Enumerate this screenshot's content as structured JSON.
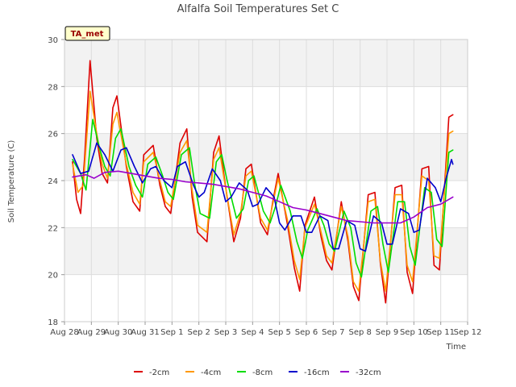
{
  "chart_data": {
    "type": "line",
    "title": "Alfalfa Soil Temperatures Set C",
    "xlabel": "Time",
    "ylabel": "Soil Temperature (C)",
    "ylim": [
      18,
      30
    ],
    "yticks": [
      18,
      20,
      22,
      24,
      26,
      28,
      30
    ],
    "xlim": [
      0,
      15
    ],
    "xticks": [
      {
        "value": 0,
        "label": "Aug 28"
      },
      {
        "value": 1,
        "label": "Aug 29"
      },
      {
        "value": 2,
        "label": "Aug 30"
      },
      {
        "value": 3,
        "label": "Aug 31"
      },
      {
        "value": 4,
        "label": "Sep 1"
      },
      {
        "value": 5,
        "label": "Sep 2"
      },
      {
        "value": 6,
        "label": "Sep 3"
      },
      {
        "value": 7,
        "label": "Sep 4"
      },
      {
        "value": 8,
        "label": "Sep 5"
      },
      {
        "value": 9,
        "label": "Sep 6"
      },
      {
        "value": 10,
        "label": "Sep 7"
      },
      {
        "value": 11,
        "label": "Sep 8"
      },
      {
        "value": 12,
        "label": "Sep 9"
      },
      {
        "value": 13,
        "label": "Sep 10"
      },
      {
        "value": 14,
        "label": "Sep 11"
      },
      {
        "value": 15,
        "label": "Sep 12"
      }
    ],
    "grid": true,
    "legend_position": "bottom",
    "annotation": "TA_met",
    "series": [
      {
        "name": "-2cm",
        "color": "#dd0000",
        "x": [
          0.3,
          0.45,
          0.6,
          0.75,
          0.95,
          1.2,
          1.4,
          1.6,
          1.8,
          1.95,
          2.3,
          2.55,
          2.8,
          2.95,
          3.3,
          3.55,
          3.75,
          3.95,
          4.3,
          4.55,
          4.75,
          4.95,
          5.3,
          5.55,
          5.75,
          5.95,
          6.3,
          6.55,
          6.75,
          6.95,
          7.3,
          7.55,
          7.75,
          7.95,
          8.3,
          8.55,
          8.75,
          8.95,
          9.3,
          9.55,
          9.75,
          9.95,
          10.3,
          10.55,
          10.75,
          10.95,
          11.3,
          11.55,
          11.75,
          11.95,
          12.3,
          12.55,
          12.75,
          12.95,
          13.3,
          13.55,
          13.75,
          13.95,
          14.3,
          14.45
        ],
        "y": [
          24.8,
          23.2,
          22.6,
          25.0,
          29.1,
          25.8,
          24.3,
          23.9,
          27.1,
          27.6,
          24.6,
          23.1,
          22.7,
          25.1,
          25.5,
          23.8,
          22.9,
          22.6,
          25.6,
          26.2,
          23.3,
          21.8,
          21.4,
          25.2,
          25.9,
          24.1,
          21.4,
          22.4,
          24.5,
          24.7,
          22.2,
          21.7,
          23.1,
          24.3,
          22.1,
          20.3,
          19.3,
          22.1,
          23.3,
          21.6,
          20.6,
          20.2,
          23.1,
          21.4,
          19.5,
          18.9,
          23.4,
          23.5,
          20.5,
          18.8,
          23.7,
          23.8,
          20.1,
          19.2,
          24.5,
          24.6,
          20.4,
          20.2,
          26.7,
          26.8
        ]
      },
      {
        "name": "-4cm",
        "color": "#ff9900",
        "x": [
          0.3,
          0.5,
          0.7,
          0.95,
          1.2,
          1.4,
          1.6,
          1.8,
          1.95,
          2.3,
          2.55,
          2.8,
          2.95,
          3.3,
          3.55,
          3.75,
          3.95,
          4.3,
          4.55,
          4.75,
          4.95,
          5.3,
          5.55,
          5.75,
          5.95,
          6.3,
          6.55,
          6.75,
          6.95,
          7.3,
          7.55,
          7.75,
          7.95,
          8.3,
          8.55,
          8.75,
          8.95,
          9.3,
          9.55,
          9.75,
          9.95,
          10.3,
          10.55,
          10.75,
          10.95,
          11.3,
          11.55,
          11.75,
          11.95,
          12.3,
          12.55,
          12.75,
          12.95,
          13.3,
          13.55,
          13.75,
          13.95,
          14.3,
          14.45
        ],
        "y": [
          24.7,
          23.5,
          23.8,
          27.8,
          26.0,
          24.7,
          24.1,
          26.4,
          26.9,
          24.7,
          23.5,
          23.0,
          24.8,
          25.2,
          24.0,
          23.1,
          22.9,
          25.2,
          25.7,
          23.6,
          22.1,
          21.8,
          24.9,
          25.4,
          24.0,
          21.7,
          22.6,
          24.2,
          24.4,
          22.4,
          21.9,
          23.0,
          24.1,
          22.3,
          20.6,
          19.8,
          22.0,
          23.0,
          21.8,
          20.8,
          20.5,
          22.9,
          21.6,
          19.7,
          19.3,
          23.1,
          23.2,
          20.6,
          19.3,
          23.4,
          23.4,
          20.4,
          19.7,
          24.2,
          24.0,
          20.8,
          20.7,
          26.0,
          26.1
        ]
      },
      {
        "name": "-8cm",
        "color": "#00dd00",
        "x": [
          0.3,
          0.6,
          0.8,
          1.05,
          1.3,
          1.5,
          1.7,
          1.9,
          2.1,
          2.4,
          2.65,
          2.9,
          3.1,
          3.4,
          3.65,
          3.85,
          4.05,
          4.35,
          4.65,
          4.85,
          5.05,
          5.4,
          5.65,
          5.85,
          6.05,
          6.4,
          6.65,
          6.85,
          7.05,
          7.4,
          7.65,
          7.85,
          8.05,
          8.4,
          8.65,
          8.85,
          9.05,
          9.4,
          9.65,
          9.85,
          10.05,
          10.4,
          10.65,
          10.85,
          11.05,
          11.4,
          11.65,
          11.85,
          12.05,
          12.4,
          12.65,
          12.85,
          13.05,
          13.4,
          13.65,
          13.85,
          14.05,
          14.3,
          14.45
        ],
        "y": [
          24.9,
          24.3,
          23.6,
          26.6,
          25.4,
          24.6,
          24.2,
          25.8,
          26.2,
          24.6,
          23.8,
          23.3,
          24.7,
          25.0,
          24.2,
          23.5,
          23.2,
          25.1,
          25.4,
          23.8,
          22.6,
          22.4,
          24.8,
          25.1,
          24.0,
          22.4,
          22.8,
          24.0,
          24.2,
          22.7,
          22.2,
          22.9,
          23.8,
          22.7,
          21.4,
          20.7,
          21.9,
          22.8,
          22.1,
          21.3,
          21.0,
          22.7,
          22.0,
          20.5,
          19.9,
          22.7,
          22.9,
          21.3,
          20.1,
          23.1,
          23.1,
          21.2,
          20.4,
          23.7,
          23.5,
          21.5,
          21.2,
          25.2,
          25.3
        ]
      },
      {
        "name": "-16cm",
        "color": "#0000cc",
        "x": [
          0.3,
          0.6,
          0.9,
          1.2,
          1.5,
          1.8,
          2.1,
          2.3,
          2.6,
          2.9,
          3.2,
          3.4,
          3.7,
          4.0,
          4.2,
          4.5,
          4.8,
          5.0,
          5.2,
          5.5,
          5.8,
          6.0,
          6.2,
          6.5,
          6.8,
          7.0,
          7.2,
          7.5,
          7.8,
          8.0,
          8.2,
          8.5,
          8.8,
          9.0,
          9.2,
          9.5,
          9.8,
          10.0,
          10.2,
          10.5,
          10.8,
          11.0,
          11.2,
          11.5,
          11.8,
          12.0,
          12.2,
          12.5,
          12.8,
          13.0,
          13.2,
          13.5,
          13.8,
          14.0,
          14.2,
          14.4,
          14.45
        ],
        "y": [
          25.1,
          24.3,
          24.4,
          25.6,
          25.1,
          24.4,
          25.3,
          25.4,
          24.6,
          23.9,
          24.5,
          24.6,
          24.0,
          23.7,
          24.6,
          24.8,
          23.8,
          23.3,
          23.5,
          24.5,
          24.0,
          23.1,
          23.3,
          23.9,
          23.6,
          22.9,
          23.0,
          23.7,
          23.3,
          22.2,
          21.9,
          22.5,
          22.5,
          21.8,
          21.8,
          22.5,
          22.3,
          21.1,
          21.1,
          22.3,
          22.1,
          21.1,
          21.0,
          22.5,
          22.2,
          21.3,
          21.3,
          22.8,
          22.6,
          21.8,
          21.9,
          24.1,
          23.7,
          23.1,
          24.1,
          24.9,
          24.7
        ]
      },
      {
        "name": "-32cm",
        "color": "#9900cc",
        "x": [
          0.3,
          0.8,
          1.1,
          1.5,
          2.0,
          2.5,
          3.0,
          3.5,
          4.0,
          4.5,
          5.0,
          5.5,
          6.0,
          6.5,
          7.0,
          7.5,
          8.0,
          8.5,
          9.0,
          9.5,
          10.0,
          10.5,
          11.0,
          11.5,
          12.0,
          12.5,
          13.0,
          13.5,
          14.0,
          14.45
        ],
        "y": [
          24.15,
          24.25,
          24.1,
          24.35,
          24.4,
          24.3,
          24.2,
          24.1,
          24.05,
          23.95,
          23.9,
          23.85,
          23.75,
          23.65,
          23.5,
          23.35,
          23.1,
          22.85,
          22.75,
          22.6,
          22.45,
          22.3,
          22.25,
          22.2,
          22.2,
          22.2,
          22.45,
          22.85,
          23.0,
          23.3
        ]
      }
    ]
  }
}
